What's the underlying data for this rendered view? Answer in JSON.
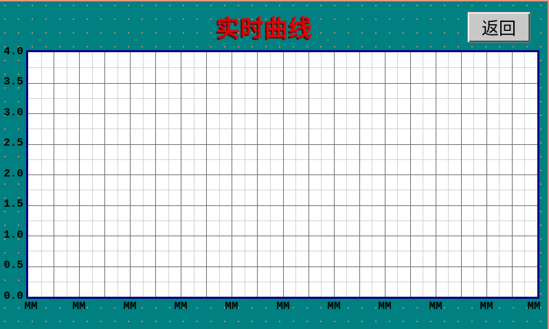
{
  "screen": {
    "title": "实时曲线",
    "colors": {
      "background_teal": "#008080",
      "dot_salmon": "#EF937B",
      "frame_salmon": "#F0957D",
      "chart_border_navy": "#000080",
      "grid_dark": "#6E6E6E",
      "grid_light": "#D2D2D2",
      "title_red": "#E60000",
      "button_face": "#C8C8C8",
      "plot_background": "#FFFFFF"
    }
  },
  "toolbar": {
    "back_button_label": "返回"
  },
  "trend_chart": {
    "type": "line",
    "title": "实时曲线",
    "y_ticks": [
      "4.0",
      "3.5",
      "3.0",
      "2.5",
      "2.0",
      "1.5",
      "1.0",
      "0.5",
      "0.0"
    ],
    "y_range": [
      0.0,
      4.0
    ],
    "x_ticks": [
      "MM",
      "MM",
      "MM",
      "MM",
      "MM",
      "MM",
      "MM",
      "MM",
      "MM",
      "MM",
      "MM"
    ],
    "grid": {
      "columns": 40,
      "rows": 16,
      "dark_line_every": 2
    },
    "series": []
  }
}
